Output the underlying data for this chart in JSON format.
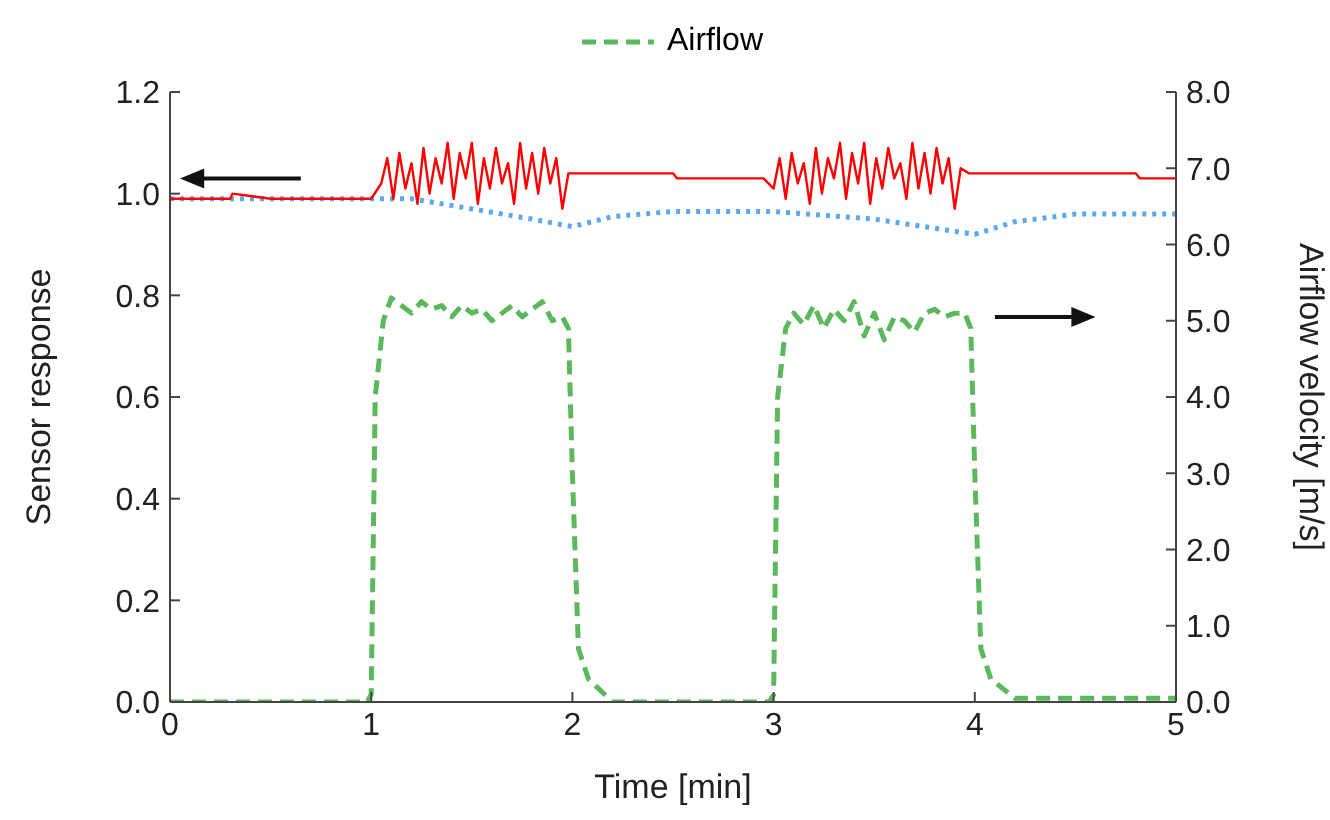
{
  "chart_data": {
    "type": "line",
    "xlabel": "Time [min]",
    "ylabel": "Sensor response",
    "y2label": "Airflow velocity [m/s]",
    "xlim": [
      0,
      5
    ],
    "xticks": [
      0,
      1,
      2,
      3,
      4,
      5
    ],
    "ylim": [
      0,
      1.2
    ],
    "yticks": [
      {
        "value": 0,
        "label": "0.0"
      },
      {
        "value": 0.2,
        "label": "0.2"
      },
      {
        "value": 0.4,
        "label": "0.4"
      },
      {
        "value": 0.6,
        "label": "0.6"
      },
      {
        "value": 0.8,
        "label": "0.8"
      },
      {
        "value": 1,
        "label": "1.0"
      },
      {
        "value": 1.2,
        "label": "1.2"
      }
    ],
    "y2lim": [
      0,
      8
    ],
    "y2ticks": [
      {
        "value": 0,
        "label": "0.0"
      },
      {
        "value": 1,
        "label": "1.0"
      },
      {
        "value": 2,
        "label": "2.0"
      },
      {
        "value": 3,
        "label": "3.0"
      },
      {
        "value": 4,
        "label": "4.0"
      },
      {
        "value": 5,
        "label": "5.0"
      },
      {
        "value": 6,
        "label": "6.0"
      },
      {
        "value": 7,
        "label": "7.0"
      },
      {
        "value": 8,
        "label": "8.0"
      }
    ],
    "legend": "top",
    "marker": "none",
    "series": [
      {
        "color": "#5aaaf0",
        "line_style": "dotted",
        "x": [
          0,
          1.2,
          1.5,
          1.8,
          2.0,
          2.2,
          2.5,
          3.0,
          3.5,
          4.0,
          4.2,
          4.5,
          5
        ],
        "values": [
          0.99,
          0.99,
          0.97,
          0.95,
          0.935,
          0.955,
          0.965,
          0.965,
          0.95,
          0.92,
          0.945,
          0.96,
          0.96
        ]
      },
      {
        "color": "#ff0000",
        "line_style": "solid",
        "x": [
          0,
          0.3,
          0.31,
          0.5,
          1.0,
          1.05,
          1.08,
          1.11,
          1.14,
          1.17,
          1.2,
          1.23,
          1.26,
          1.29,
          1.32,
          1.35,
          1.38,
          1.41,
          1.44,
          1.47,
          1.5,
          1.53,
          1.56,
          1.59,
          1.62,
          1.65,
          1.68,
          1.71,
          1.74,
          1.77,
          1.8,
          1.83,
          1.86,
          1.89,
          1.92,
          1.95,
          1.98,
          2.02,
          2.5,
          2.52,
          2.95,
          3.0,
          3.03,
          3.06,
          3.09,
          3.12,
          3.15,
          3.18,
          3.21,
          3.24,
          3.27,
          3.3,
          3.33,
          3.36,
          3.39,
          3.42,
          3.45,
          3.48,
          3.51,
          3.54,
          3.57,
          3.6,
          3.63,
          3.66,
          3.69,
          3.72,
          3.75,
          3.78,
          3.81,
          3.84,
          3.87,
          3.9,
          3.93,
          3.97,
          4.02,
          4.8,
          4.82,
          5
        ],
        "values": [
          0.99,
          0.99,
          1.0,
          0.99,
          0.99,
          1.02,
          1.07,
          0.99,
          1.08,
          1.01,
          1.06,
          0.98,
          1.09,
          1.0,
          1.07,
          1.02,
          1.1,
          0.99,
          1.08,
          1.03,
          1.1,
          0.98,
          1.07,
          1.01,
          1.09,
          1.02,
          1.06,
          0.98,
          1.1,
          1.01,
          1.08,
          1.0,
          1.09,
          1.02,
          1.07,
          0.97,
          1.04,
          1.04,
          1.04,
          1.03,
          1.03,
          1.01,
          1.07,
          0.99,
          1.08,
          1.02,
          1.06,
          0.98,
          1.09,
          1.0,
          1.07,
          1.03,
          1.1,
          0.99,
          1.08,
          1.02,
          1.1,
          0.98,
          1.07,
          1.01,
          1.09,
          1.03,
          1.06,
          0.99,
          1.1,
          1.01,
          1.08,
          1.0,
          1.09,
          1.02,
          1.07,
          0.97,
          1.05,
          1.04,
          1.04,
          1.04,
          1.03,
          1.03
        ]
      },
      {
        "name": "Airflow",
        "color": "#5cb85c",
        "line_style": "dashed",
        "axis": "y2",
        "x": [
          0,
          0.98,
          1.0,
          1.02,
          1.06,
          1.1,
          1.15,
          1.2,
          1.25,
          1.3,
          1.35,
          1.4,
          1.45,
          1.5,
          1.55,
          1.6,
          1.65,
          1.7,
          1.75,
          1.8,
          1.85,
          1.9,
          1.95,
          1.98,
          2.0,
          2.03,
          2.08,
          2.2,
          2.98,
          3.0,
          3.02,
          3.06,
          3.1,
          3.15,
          3.2,
          3.25,
          3.3,
          3.35,
          3.4,
          3.45,
          3.5,
          3.55,
          3.6,
          3.65,
          3.7,
          3.75,
          3.8,
          3.85,
          3.9,
          3.95,
          3.98,
          4.0,
          4.03,
          4.08,
          4.2,
          5
        ],
        "values": [
          0,
          0,
          0.1,
          4.0,
          5.0,
          5.3,
          5.2,
          5.1,
          5.25,
          5.15,
          5.2,
          5.05,
          5.2,
          5.1,
          5.15,
          5.0,
          5.1,
          5.2,
          5.05,
          5.15,
          5.25,
          5.0,
          5.05,
          4.9,
          3.0,
          0.7,
          0.3,
          0,
          0,
          0.1,
          4.0,
          4.9,
          5.1,
          4.95,
          5.2,
          4.9,
          5.15,
          5.0,
          5.25,
          4.8,
          5.1,
          4.75,
          5.05,
          5.0,
          4.85,
          5.1,
          5.15,
          5.05,
          5.1,
          5.1,
          4.9,
          3.0,
          0.7,
          0.3,
          0.05,
          0.05
        ]
      }
    ]
  }
}
